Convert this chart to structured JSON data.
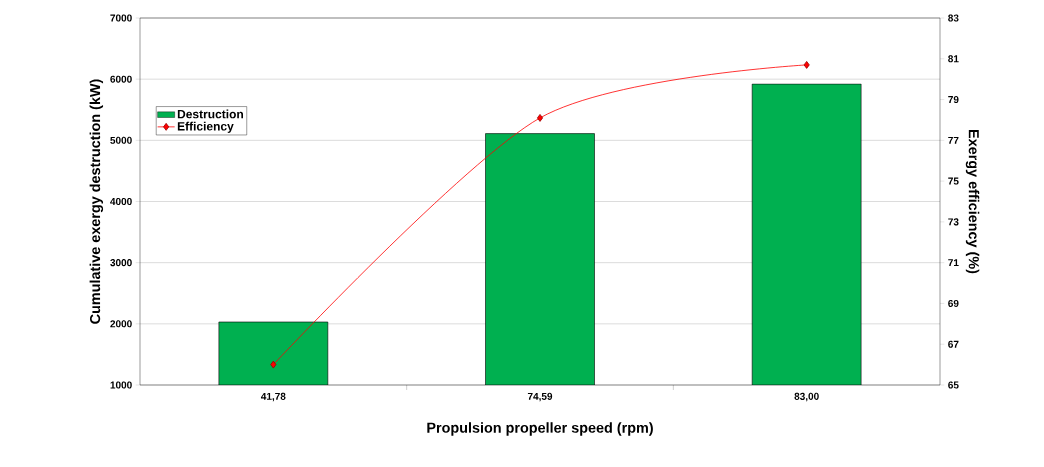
{
  "chart_data": {
    "type": "bar",
    "categories": [
      "41,78",
      "74,59",
      "83,00"
    ],
    "xlabel": "Propulsion propeller speed (rpm)",
    "ylabel": "Cumulative exergy destruction (kW)",
    "y2label": "Exergy efficiency (%)",
    "series": [
      {
        "name": "Destruction",
        "color": "#00b050",
        "values": [
          2030,
          5110,
          5920
        ]
      },
      {
        "name": "Efficiency",
        "type": "line",
        "axis": "y2",
        "color": "#ff0000",
        "marker": "diamond",
        "values": [
          66.0,
          78.1,
          80.7
        ]
      }
    ],
    "ylim": [
      1000,
      7000
    ],
    "yticks": [
      1000,
      2000,
      3000,
      4000,
      5000,
      6000,
      7000
    ],
    "y2lim": [
      65,
      83
    ],
    "y2ticks": [
      65,
      67,
      69,
      71,
      73,
      75,
      77,
      79,
      81,
      83
    ],
    "grid": "y",
    "legend": "left"
  }
}
